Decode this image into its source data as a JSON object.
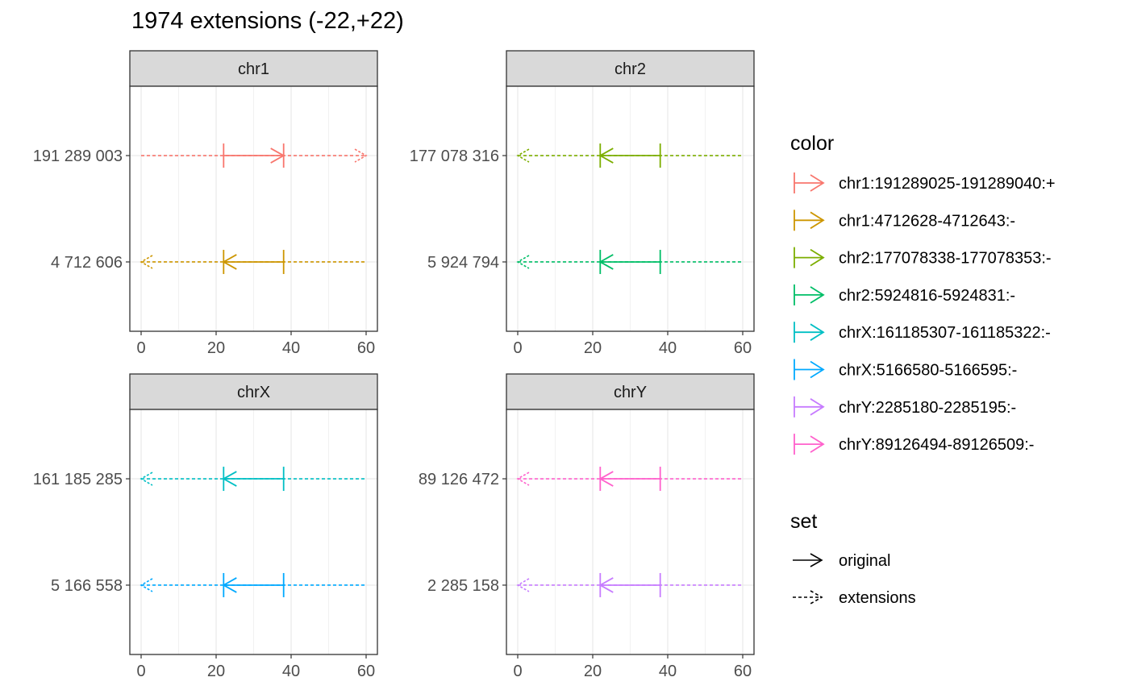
{
  "chart_data": {
    "type": "line",
    "title": "1974 extensions (-22,+22)",
    "xlim": [
      0,
      60
    ],
    "x_ticks": [
      0,
      20,
      40,
      60
    ],
    "grid": true,
    "legend_position": "right",
    "panels": [
      {
        "strip": "chr1",
        "rows": [
          {
            "ylabel": "191 289 003",
            "color_key": "chr1:191289025-191289040:+",
            "strand": "+",
            "original": [
              22,
              38
            ],
            "extensions": [
              0,
              60
            ]
          },
          {
            "ylabel": "4 712 606",
            "color_key": "chr1:4712628-4712643:-",
            "strand": "-",
            "original": [
              22,
              38
            ],
            "extensions": [
              0,
              60
            ]
          }
        ]
      },
      {
        "strip": "chr2",
        "rows": [
          {
            "ylabel": "177 078 316",
            "color_key": "chr2:177078338-177078353:-",
            "strand": "-",
            "original": [
              22,
              38
            ],
            "extensions": [
              0,
              60
            ]
          },
          {
            "ylabel": "5 924 794",
            "color_key": "chr2:5924816-5924831:-",
            "strand": "-",
            "original": [
              22,
              38
            ],
            "extensions": [
              0,
              60
            ]
          }
        ]
      },
      {
        "strip": "chrX",
        "rows": [
          {
            "ylabel": "161 185 285",
            "color_key": "chrX:161185307-161185322:-",
            "strand": "-",
            "original": [
              22,
              38
            ],
            "extensions": [
              0,
              60
            ]
          },
          {
            "ylabel": "5 166 558",
            "color_key": "chrX:5166580-5166595:-",
            "strand": "-",
            "original": [
              22,
              38
            ],
            "extensions": [
              0,
              60
            ]
          }
        ]
      },
      {
        "strip": "chrY",
        "rows": [
          {
            "ylabel": "89 126 472",
            "color_key": "chrY:89126494-89126509:-",
            "strand": "-",
            "original": [
              22,
              38
            ],
            "extensions": [
              0,
              60
            ]
          },
          {
            "ylabel": "2 285 158",
            "color_key": "chrY:2285180-2285195:-",
            "strand": "-",
            "original": [
              22,
              38
            ],
            "extensions": [
              0,
              60
            ]
          }
        ]
      }
    ],
    "legend_color": {
      "title": "color",
      "items": [
        {
          "label": "chr1:191289025-191289040:+",
          "color": "#F8766D"
        },
        {
          "label": "chr1:4712628-4712643:-",
          "color": "#CD9600"
        },
        {
          "label": "chr2:177078338-177078353:-",
          "color": "#7CAE00"
        },
        {
          "label": "chr2:5924816-5924831:-",
          "color": "#00BE67"
        },
        {
          "label": "chrX:161185307-161185322:-",
          "color": "#00BFC4"
        },
        {
          "label": "chrX:5166580-5166595:-",
          "color": "#00A9FF"
        },
        {
          "label": "chrY:2285180-2285195:-",
          "color": "#C77CFF"
        },
        {
          "label": "chrY:89126494-89126509:-",
          "color": "#FF61CC"
        }
      ]
    },
    "legend_set": {
      "title": "set",
      "items": [
        {
          "label": "original",
          "linetype": "solid"
        },
        {
          "label": "extensions",
          "linetype": "dashed"
        }
      ]
    }
  }
}
